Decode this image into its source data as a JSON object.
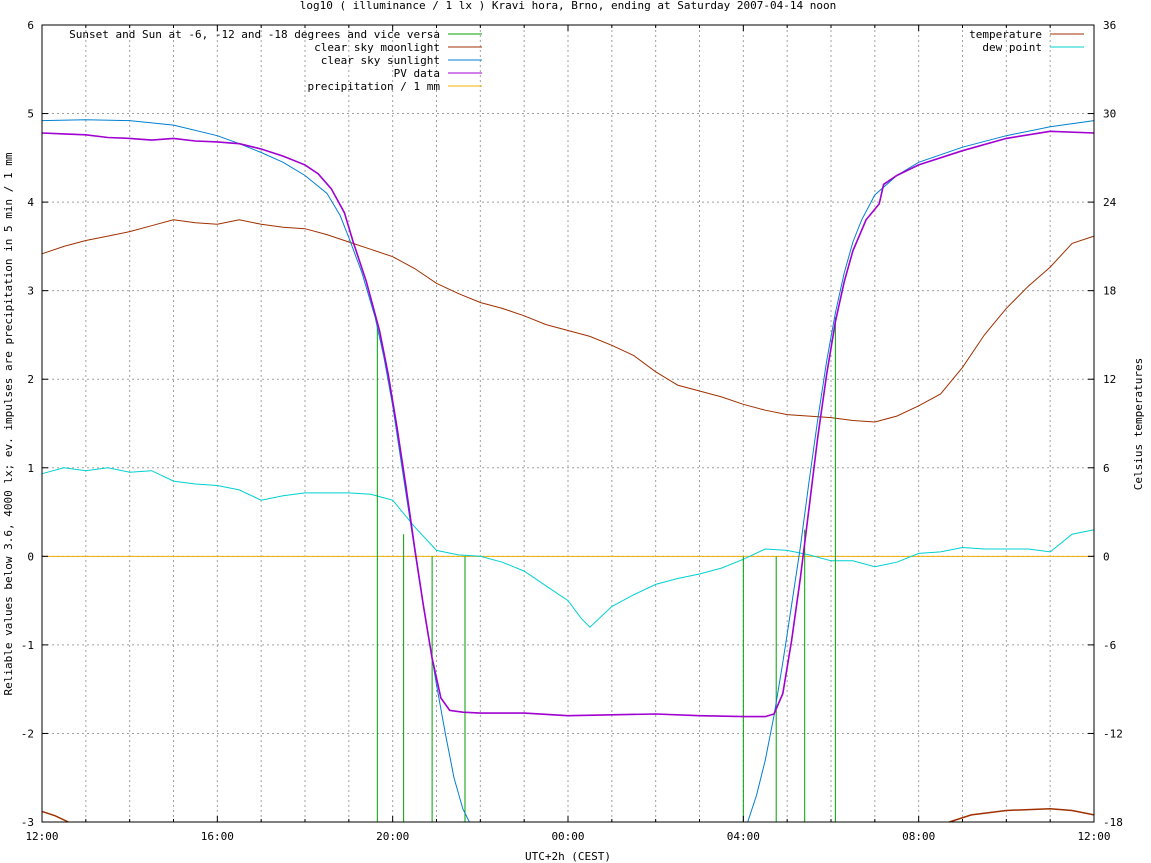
{
  "chart_data": {
    "type": "line",
    "title": "log10 ( illuminance / 1 lx ) Kravi hora, Brno, ending at Saturday 2007-04-14 noon",
    "xlabel": "UTC+2h (CEST)",
    "ylabel": "Reliable values below 3.6, 4000 lx; ev. impulses are precipitation in 5 min / 1 mm",
    "y2label": "Celsius temperatures",
    "x_range_hours": [
      12,
      36
    ],
    "ylim": [
      -3,
      6
    ],
    "y2lim": [
      -18,
      36
    ],
    "grid": true,
    "x_tick_labels": [
      {
        "h": 12,
        "label": "12:00"
      },
      {
        "h": 16,
        "label": "16:00"
      },
      {
        "h": 20,
        "label": "20:00"
      },
      {
        "h": 24,
        "label": "00:00"
      },
      {
        "h": 28,
        "label": "04:00"
      },
      {
        "h": 32,
        "label": "08:00"
      },
      {
        "h": 36,
        "label": "12:00"
      }
    ],
    "y_ticks": [
      {
        "v": -3,
        "label": "-3"
      },
      {
        "v": -2,
        "label": "-2"
      },
      {
        "v": -1,
        "label": "-1"
      },
      {
        "v": 0,
        "label": "0"
      },
      {
        "v": 1,
        "label": "1"
      },
      {
        "v": 2,
        "label": "2"
      },
      {
        "v": 3,
        "label": "3"
      },
      {
        "v": 4,
        "label": "4"
      },
      {
        "v": 5,
        "label": "5"
      },
      {
        "v": 6,
        "label": "6"
      }
    ],
    "y2_ticks": [
      {
        "v": -18,
        "label": "-18"
      },
      {
        "v": -12,
        "label": "-12"
      },
      {
        "v": -6,
        "label": "-6"
      },
      {
        "v": 0,
        "label": "0"
      },
      {
        "v": 6,
        "label": "6"
      },
      {
        "v": 12,
        "label": "12"
      },
      {
        "v": 18,
        "label": "18"
      },
      {
        "v": 24,
        "label": "24"
      },
      {
        "v": 30,
        "label": "30"
      },
      {
        "v": 36,
        "label": "36"
      }
    ],
    "legend_left": [
      {
        "name": "Sunset and Sun at -6, -12 and -18 degrees and vice versa",
        "color": "#00a000"
      },
      {
        "name": "clear sky moonlight",
        "color": "#a03000"
      },
      {
        "name": "clear sky sunlight",
        "color": "#0080d0"
      },
      {
        "name": "PV data",
        "color": "#a000d0"
      },
      {
        "name": "precipitation / 1 mm",
        "color": "#f0b000"
      }
    ],
    "legend_right": [
      {
        "name": "temperature",
        "color": "#a03000"
      },
      {
        "name": "dew point",
        "color": "#00d0d0"
      }
    ],
    "series": {
      "sun_events": {
        "color": "#00a000",
        "lines": [
          {
            "h": 19.65,
            "top": 2.6
          },
          {
            "h": 20.25,
            "top": 0.25
          },
          {
            "h": 20.9,
            "top": 0.0
          },
          {
            "h": 21.65,
            "top": 0.0
          },
          {
            "h": 28.0,
            "top": 0.0
          },
          {
            "h": 28.75,
            "top": 0.0
          },
          {
            "h": 29.4,
            "top": 0.3
          },
          {
            "h": 30.1,
            "top": 2.7
          }
        ]
      },
      "sunlight": {
        "color": "#0080d0",
        "points": [
          [
            12,
            4.92
          ],
          [
            13,
            4.93
          ],
          [
            14,
            4.92
          ],
          [
            15,
            4.87
          ],
          [
            16,
            4.75
          ],
          [
            16.5,
            4.66
          ],
          [
            17,
            4.56
          ],
          [
            17.5,
            4.45
          ],
          [
            18,
            4.3
          ],
          [
            18.5,
            4.1
          ],
          [
            18.8,
            3.85
          ],
          [
            19,
            3.6
          ],
          [
            19.3,
            3.2
          ],
          [
            19.6,
            2.7
          ],
          [
            19.8,
            2.25
          ],
          [
            20,
            1.7
          ],
          [
            20.2,
            1.05
          ],
          [
            20.4,
            0.4
          ],
          [
            20.6,
            -0.25
          ],
          [
            20.8,
            -0.85
          ],
          [
            21,
            -1.45
          ],
          [
            21.2,
            -2.0
          ],
          [
            21.4,
            -2.5
          ],
          [
            21.6,
            -2.85
          ],
          [
            21.75,
            -3.0
          ],
          [
            28.1,
            -3.0
          ],
          [
            28.3,
            -2.7
          ],
          [
            28.5,
            -2.3
          ],
          [
            28.7,
            -1.8
          ],
          [
            28.9,
            -1.2
          ],
          [
            29.1,
            -0.55
          ],
          [
            29.3,
            0.1
          ],
          [
            29.5,
            0.85
          ],
          [
            29.7,
            1.55
          ],
          [
            29.9,
            2.2
          ],
          [
            30.1,
            2.75
          ],
          [
            30.3,
            3.2
          ],
          [
            30.5,
            3.55
          ],
          [
            30.7,
            3.8
          ],
          [
            31,
            4.08
          ],
          [
            31.5,
            4.3
          ],
          [
            32,
            4.45
          ],
          [
            33,
            4.62
          ],
          [
            34,
            4.75
          ],
          [
            35,
            4.85
          ],
          [
            36,
            4.92
          ]
        ]
      },
      "pv_data": {
        "color": "#a000d0",
        "points": [
          [
            12,
            4.78
          ],
          [
            12.5,
            4.77
          ],
          [
            13,
            4.76
          ],
          [
            13.5,
            4.73
          ],
          [
            14,
            4.72
          ],
          [
            14.5,
            4.7
          ],
          [
            15,
            4.72
          ],
          [
            15.5,
            4.69
          ],
          [
            16,
            4.68
          ],
          [
            16.5,
            4.66
          ],
          [
            17,
            4.6
          ],
          [
            17.5,
            4.52
          ],
          [
            18,
            4.42
          ],
          [
            18.3,
            4.32
          ],
          [
            18.6,
            4.15
          ],
          [
            18.9,
            3.88
          ],
          [
            19.1,
            3.55
          ],
          [
            19.4,
            3.1
          ],
          [
            19.7,
            2.55
          ],
          [
            19.9,
            2.05
          ],
          [
            20.1,
            1.45
          ],
          [
            20.3,
            0.8
          ],
          [
            20.5,
            0.1
          ],
          [
            20.7,
            -0.55
          ],
          [
            20.9,
            -1.15
          ],
          [
            21.1,
            -1.6
          ],
          [
            21.3,
            -1.74
          ],
          [
            21.6,
            -1.76
          ],
          [
            22,
            -1.77
          ],
          [
            23,
            -1.77
          ],
          [
            24,
            -1.8
          ],
          [
            25,
            -1.79
          ],
          [
            26,
            -1.78
          ],
          [
            27,
            -1.8
          ],
          [
            28,
            -1.81
          ],
          [
            28.5,
            -1.81
          ],
          [
            28.7,
            -1.78
          ],
          [
            28.9,
            -1.55
          ],
          [
            29.1,
            -0.95
          ],
          [
            29.3,
            -0.25
          ],
          [
            29.5,
            0.55
          ],
          [
            29.7,
            1.35
          ],
          [
            29.9,
            2.05
          ],
          [
            30.1,
            2.65
          ],
          [
            30.3,
            3.1
          ],
          [
            30.5,
            3.45
          ],
          [
            30.8,
            3.8
          ],
          [
            31.1,
            3.98
          ],
          [
            31.2,
            4.2
          ],
          [
            31.5,
            4.3
          ],
          [
            32,
            4.42
          ],
          [
            33,
            4.58
          ],
          [
            34,
            4.72
          ],
          [
            35,
            4.8
          ],
          [
            36,
            4.78
          ]
        ]
      },
      "moonlight": {
        "color": "#a03000",
        "segments": [
          [
            [
              12,
              -2.88
            ],
            [
              12.3,
              -2.93
            ],
            [
              12.6,
              -3.0
            ]
          ],
          [
            [
              32.7,
              -3.0
            ],
            [
              33.2,
              -2.92
            ],
            [
              34,
              -2.87
            ],
            [
              35,
              -2.85
            ],
            [
              35.5,
              -2.87
            ],
            [
              36,
              -2.92
            ]
          ]
        ]
      },
      "temperature": {
        "color": "#a03000",
        "points": [
          [
            12,
            20.5
          ],
          [
            12.5,
            21.0
          ],
          [
            13,
            21.4
          ],
          [
            13.5,
            21.7
          ],
          [
            14,
            22
          ],
          [
            14.5,
            22.4
          ],
          [
            15,
            22.8
          ],
          [
            15.5,
            22.6
          ],
          [
            16,
            22.5
          ],
          [
            16.5,
            22.8
          ],
          [
            17,
            22.5
          ],
          [
            17.5,
            22.3
          ],
          [
            18,
            22.2
          ],
          [
            18.5,
            21.8
          ],
          [
            19,
            21.3
          ],
          [
            19.5,
            20.8
          ],
          [
            20,
            20.3
          ],
          [
            20.5,
            19.5
          ],
          [
            21,
            18.5
          ],
          [
            21.5,
            17.8
          ],
          [
            22,
            17.2
          ],
          [
            22.5,
            16.8
          ],
          [
            23,
            16.3
          ],
          [
            23.5,
            15.7
          ],
          [
            24,
            15.3
          ],
          [
            24.5,
            14.9
          ],
          [
            25,
            14.3
          ],
          [
            25.5,
            13.6
          ],
          [
            26,
            12.5
          ],
          [
            26.5,
            11.6
          ],
          [
            27,
            11.2
          ],
          [
            27.5,
            10.8
          ],
          [
            28,
            10.3
          ],
          [
            28.5,
            9.9
          ],
          [
            29,
            9.6
          ],
          [
            29.5,
            9.5
          ],
          [
            30,
            9.4
          ],
          [
            30.5,
            9.2
          ],
          [
            31,
            9.1
          ],
          [
            31.5,
            9.5
          ],
          [
            32,
            10.2
          ],
          [
            32.5,
            11
          ],
          [
            33,
            12.8
          ],
          [
            33.5,
            15
          ],
          [
            34,
            16.8
          ],
          [
            34.5,
            18.3
          ],
          [
            35,
            19.6
          ],
          [
            35.5,
            21.2
          ],
          [
            36,
            21.7
          ]
        ]
      },
      "dew_point": {
        "color": "#00d0d0",
        "points": [
          [
            12,
            5.6
          ],
          [
            12.5,
            6.0
          ],
          [
            13,
            5.8
          ],
          [
            13.5,
            6.0
          ],
          [
            14,
            5.7
          ],
          [
            14.5,
            5.8
          ],
          [
            15,
            5.1
          ],
          [
            15.5,
            4.9
          ],
          [
            16,
            4.8
          ],
          [
            16.5,
            4.5
          ],
          [
            17,
            3.8
          ],
          [
            17.5,
            4.1
          ],
          [
            18,
            4.3
          ],
          [
            18.5,
            4.3
          ],
          [
            19,
            4.3
          ],
          [
            19.5,
            4.2
          ],
          [
            20,
            3.8
          ],
          [
            20.5,
            2.0
          ],
          [
            21,
            0.4
          ],
          [
            21.5,
            0.1
          ],
          [
            22,
            0.0
          ],
          [
            22.5,
            -0.4
          ],
          [
            23,
            -1.0
          ],
          [
            23.5,
            -2.0
          ],
          [
            24,
            -3.0
          ],
          [
            24.3,
            -4.2
          ],
          [
            24.5,
            -4.8
          ],
          [
            25,
            -3.4
          ],
          [
            25.5,
            -2.6
          ],
          [
            26,
            -1.9
          ],
          [
            26.5,
            -1.5
          ],
          [
            27,
            -1.2
          ],
          [
            27.5,
            -0.8
          ],
          [
            28,
            -0.2
          ],
          [
            28.5,
            0.5
          ],
          [
            29,
            0.4
          ],
          [
            29.5,
            0.1
          ],
          [
            30,
            -0.3
          ],
          [
            30.5,
            -0.3
          ],
          [
            31,
            -0.7
          ],
          [
            31.5,
            -0.4
          ],
          [
            32,
            0.2
          ],
          [
            32.5,
            0.3
          ],
          [
            33,
            0.6
          ],
          [
            33.5,
            0.5
          ],
          [
            34,
            0.5
          ],
          [
            34.5,
            0.5
          ],
          [
            35,
            0.3
          ],
          [
            35.5,
            1.5
          ],
          [
            36,
            1.8
          ]
        ]
      },
      "precipitation": {
        "color": "#f0b000",
        "value": 0
      }
    }
  }
}
